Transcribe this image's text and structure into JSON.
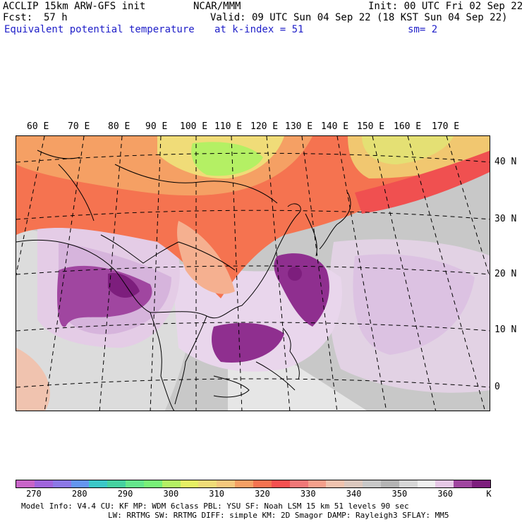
{
  "header": {
    "model": "ACCLIP 15km ARW-GFS init",
    "org": "NCAR/MMM",
    "init": "Init: 00 UTC Fri 02 Sep 22",
    "fcst_label": "Fcst:",
    "fcst_value": "57 h",
    "valid": "Valid: 09 UTC Sun 04 Sep 22 (18 KST Sun 04 Sep 22)",
    "field": "Equivalent potential temperature",
    "level": "at k-index =  51",
    "smooth": "sm= 2"
  },
  "map": {
    "lon_labels": [
      "60 E",
      "70 E",
      "80 E",
      "90 E",
      "100 E",
      "110 E",
      "120 E",
      "130 E",
      "140 E",
      "150 E",
      "160 E",
      "170 E"
    ],
    "lat_labels": [
      "40 N",
      "30 N",
      "20 N",
      "10 N",
      "0"
    ]
  },
  "colorbar": {
    "unit": "K",
    "tick_labels": [
      "270",
      "280",
      "290",
      "300",
      "310",
      "320",
      "330",
      "340",
      "350",
      "360"
    ],
    "colors": [
      "#c864c8",
      "#a064dc",
      "#8c78e6",
      "#6496f0",
      "#3cc8c8",
      "#46d2a0",
      "#64e68c",
      "#78f078",
      "#b4f064",
      "#e6f064",
      "#f0dc78",
      "#f5c87d",
      "#f5a064",
      "#f57350",
      "#f55050",
      "#f07878",
      "#f5a08c",
      "#f0c3af",
      "#dcc8be",
      "#c8c8c8",
      "#b4b4b4",
      "#d7d7d7",
      "#f0f0f0",
      "#e6c8e6",
      "#a046a0",
      "#7d1e7d"
    ]
  },
  "footer": {
    "line1": "Model Info: V4.4     CU: KF      MP: WDM 6class  PBL: YSU      SF: Noah LSM     15 km   51 levels   90 sec",
    "line2": "LW: RRTMG   SW: RRTMG  DIFF: simple KM: 2D Smagor DAMP: Rayleigh3  SFLAY: MM5"
  }
}
